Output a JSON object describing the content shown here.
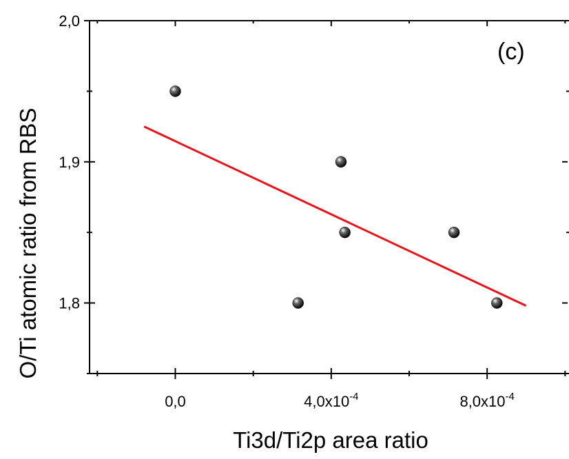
{
  "chart_data": {
    "type": "scatter",
    "panel_label": "(c)",
    "xlabel": "Ti3d/Ti2p area ratio",
    "ylabel": "O/Ti atomic ratio from RBS",
    "xlim": [
      -0.00022,
      0.00101
    ],
    "ylim": [
      1.75,
      2.0
    ],
    "x_ticks": [
      {
        "value": 0.0,
        "mantissa": "0,0",
        "exp": ""
      },
      {
        "value": 0.0004,
        "mantissa": "4,0x10",
        "exp": "-4"
      },
      {
        "value": 0.0008,
        "mantissa": "8,0x10",
        "exp": "-4"
      }
    ],
    "x_minor_ticks": [
      -0.0002,
      0.0002,
      0.0006,
      0.001
    ],
    "y_ticks": [
      {
        "value": 2.0,
        "label": "2,0"
      },
      {
        "value": 1.9,
        "label": "1,9"
      },
      {
        "value": 1.8,
        "label": "1,8"
      }
    ],
    "y_minor_ticks": [
      1.95,
      1.85,
      1.75
    ],
    "points": [
      {
        "x": 0.0,
        "y": 1.95
      },
      {
        "x": 0.000425,
        "y": 1.9
      },
      {
        "x": 0.000435,
        "y": 1.85
      },
      {
        "x": 0.000315,
        "y": 1.8
      },
      {
        "x": 0.000715,
        "y": 1.85
      },
      {
        "x": 0.000825,
        "y": 1.8
      }
    ],
    "fit_line": {
      "x": [
        -8e-05,
        0.0009
      ],
      "y": [
        1.925,
        1.798
      ],
      "color": "#e8141c"
    },
    "marker_color": "#000000",
    "grid": false
  }
}
